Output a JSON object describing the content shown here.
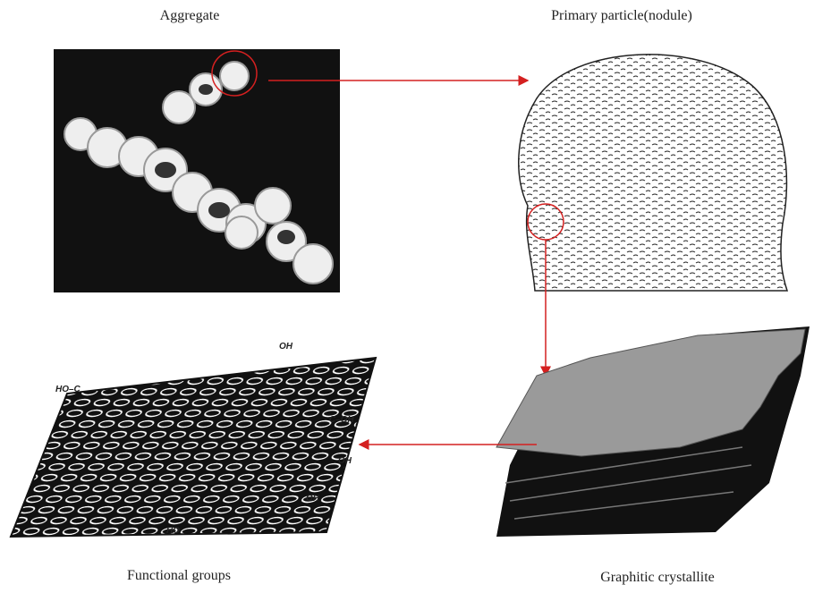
{
  "panels": [
    {
      "label": "Aggregate"
    },
    {
      "label": "Primary particle(nodule)"
    },
    {
      "label": "Functional groups",
      "group_labels": [
        "HO–C",
        "OH",
        "C–OH",
        "OH",
        "OH",
        "HO"
      ]
    },
    {
      "label": "Graphitic crystallite"
    }
  ]
}
